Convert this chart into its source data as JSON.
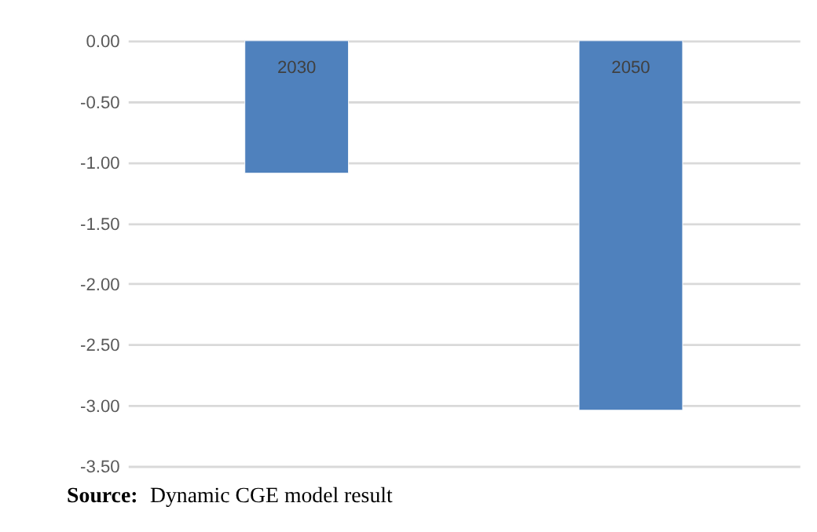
{
  "chart_data": {
    "type": "bar",
    "categories": [
      "2030",
      "2050"
    ],
    "values": [
      -1.09,
      -3.04
    ],
    "color": "#4f81bd",
    "ylim": [
      -3.5,
      0
    ],
    "yticks": [
      {
        "value": 0,
        "label": "0.00"
      },
      {
        "value": -0.5,
        "label": "-0.50"
      },
      {
        "value": -1,
        "label": "-1.00"
      },
      {
        "value": -1.5,
        "label": "-1.50"
      },
      {
        "value": -2,
        "label": "-2.00"
      },
      {
        "value": -2.5,
        "label": "-2.50"
      },
      {
        "value": -3,
        "label": "-3.00"
      },
      {
        "value": -3.5,
        "label": "-3.50"
      }
    ],
    "grid": "y",
    "annotations": [
      "Source: Dynamic CGE model result"
    ]
  }
}
